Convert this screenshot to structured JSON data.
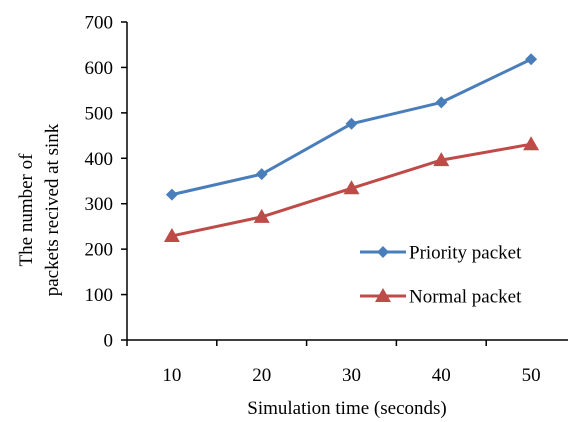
{
  "chart_data": {
    "type": "line",
    "title": "",
    "xlabel": "Simulation time (seconds)",
    "ylabel_line1": "The number of",
    "ylabel_line2": "packets recived at sink",
    "categories": [
      "10",
      "20",
      "30",
      "40",
      "50"
    ],
    "x": [
      10,
      20,
      30,
      40,
      50
    ],
    "ylim": [
      0,
      700
    ],
    "yticks": [
      0,
      100,
      200,
      300,
      400,
      500,
      600,
      700
    ],
    "grid": false,
    "legend_position": "bottom-right",
    "series": [
      {
        "name": "Priority packet",
        "color": "#4A7EBB",
        "marker": "diamond",
        "values": [
          320,
          365,
          476,
          523,
          618
        ]
      },
      {
        "name": "Normal packet",
        "color": "#BE4B48",
        "marker": "triangle",
        "values": [
          229,
          271,
          334,
          396,
          431
        ]
      }
    ]
  }
}
